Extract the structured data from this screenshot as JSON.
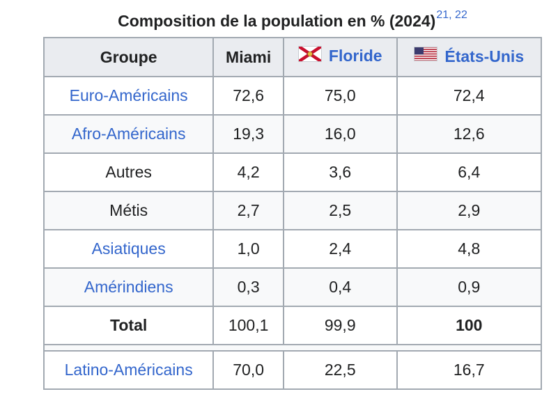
{
  "caption": {
    "title": "Composition de la population en % (2024)",
    "refs": "21, 22"
  },
  "header": {
    "col1": "Groupe",
    "col2": "Miami",
    "col3": "Floride",
    "col4": "États-Unis"
  },
  "rows": [
    {
      "group": "Euro-Américains",
      "miami": "72,6",
      "floride": "75,0",
      "usa": "72,4"
    },
    {
      "group": "Afro-Américains",
      "miami": "19,3",
      "floride": "16,0",
      "usa": "12,6"
    },
    {
      "group": "Autres",
      "miami": "4,2",
      "floride": "3,6",
      "usa": "6,4"
    },
    {
      "group": "Métis",
      "miami": "2,7",
      "floride": "2,5",
      "usa": "2,9"
    },
    {
      "group": "Asiatiques",
      "miami": "1,0",
      "floride": "2,4",
      "usa": "4,8"
    },
    {
      "group": "Amérindiens",
      "miami": "0,3",
      "floride": "0,4",
      "usa": "0,9"
    }
  ],
  "total": {
    "group": "Total",
    "miami": "100,1",
    "floride": "99,9",
    "usa": "100"
  },
  "latino": {
    "group": "Latino-Américains",
    "miami": "70,0",
    "floride": "22,5",
    "usa": "16,7"
  },
  "colors": {
    "link": "#3366cc",
    "header_bg": "#eaecf0",
    "border": "#a2a9b1"
  },
  "icons": {
    "florida_flag": "florida-flag-icon",
    "usa_flag": "usa-flag-icon"
  }
}
